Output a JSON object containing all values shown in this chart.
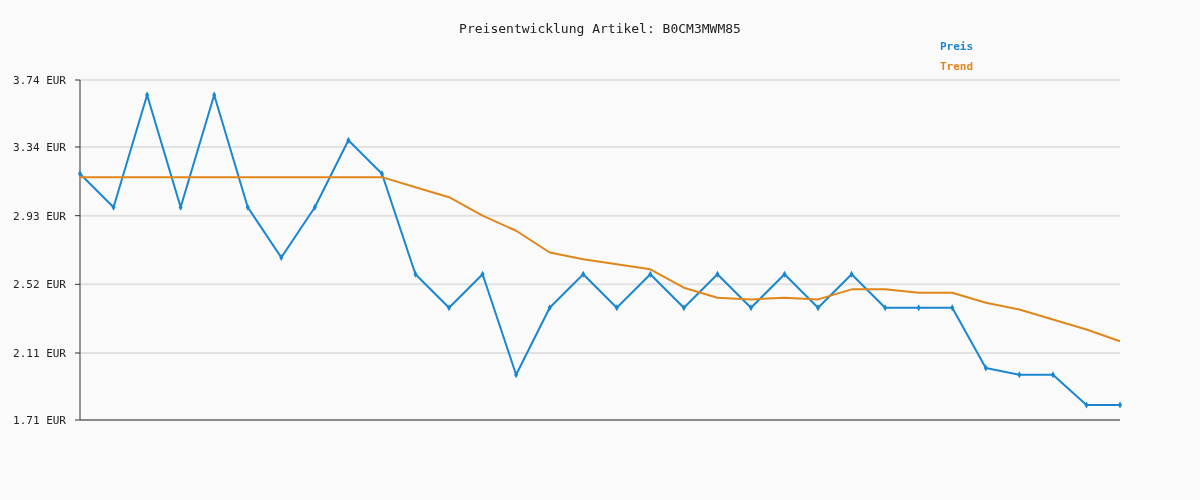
{
  "chart_data": {
    "type": "line",
    "title": "Preisentwicklung Artikel: B0CM3MWM85",
    "categories": [
      null,
      null,
      null,
      null,
      null,
      null,
      null,
      null,
      null,
      null,
      null,
      null,
      null,
      null,
      null,
      null,
      null,
      null,
      null,
      null,
      null,
      null,
      null,
      null,
      null,
      null,
      null,
      null,
      null,
      null,
      null,
      null
    ],
    "series": [
      {
        "name": "Preis",
        "color": "#1a86d0",
        "marker": "diamond",
        "values": [
          3.18,
          2.98,
          3.65,
          2.98,
          3.65,
          2.98,
          2.68,
          2.98,
          3.38,
          3.18,
          2.58,
          2.38,
          2.58,
          1.98,
          2.38,
          2.58,
          2.38,
          2.58,
          2.38,
          2.58,
          2.38,
          2.58,
          2.38,
          2.58,
          2.38,
          2.38,
          2.38,
          2.02,
          1.98,
          1.98,
          1.8,
          1.8
        ]
      },
      {
        "name": "Trend",
        "color": "#e0861a",
        "marker": "none",
        "values": [
          3.16,
          3.16,
          3.16,
          3.16,
          3.16,
          3.16,
          3.16,
          3.16,
          3.16,
          3.16,
          3.1,
          3.04,
          2.93,
          2.84,
          2.71,
          2.67,
          2.64,
          2.61,
          2.5,
          2.44,
          2.43,
          2.44,
          2.43,
          2.49,
          2.49,
          2.47,
          2.47,
          2.41,
          2.37,
          2.31,
          2.25,
          2.18
        ]
      }
    ],
    "ylim": [
      1.71,
      3.74
    ],
    "yticks": [
      {
        "value": 1.71,
        "label": "1.71 EUR"
      },
      {
        "value": 2.11,
        "label": "2.11 EUR"
      },
      {
        "value": 2.52,
        "label": "2.52 EUR"
      },
      {
        "value": 2.93,
        "label": "2.93 EUR"
      },
      {
        "value": 3.34,
        "label": "3.34 EUR"
      },
      {
        "value": 3.74,
        "label": "3.74 EUR"
      }
    ],
    "grid": "y",
    "legend": "top right"
  }
}
